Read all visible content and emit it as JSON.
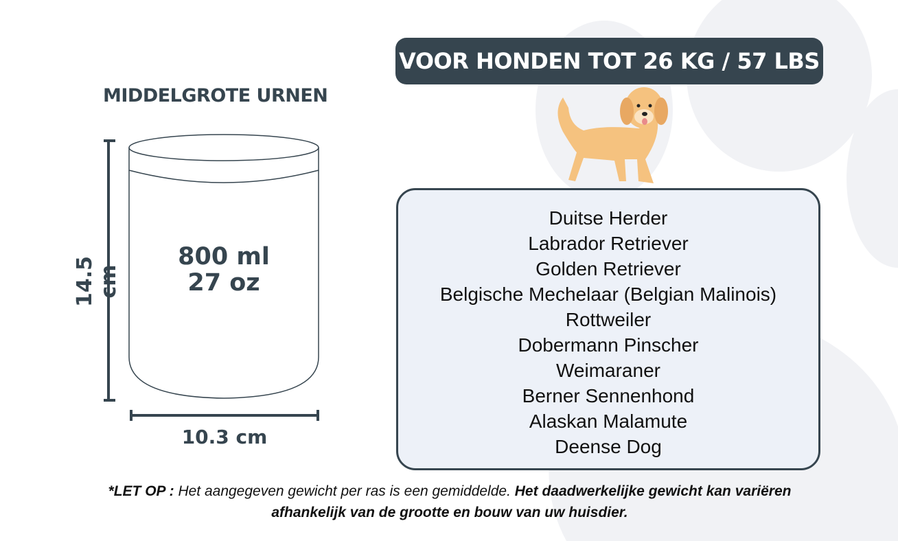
{
  "heading": "MIDDELGROTE URNEN",
  "banner": "VOOR HONDEN TOT 26 KG / 57 LBS",
  "urn": {
    "capacity_ml": "800 ml",
    "capacity_oz": "27 oz",
    "height": "14.5 cm",
    "width": "10.3 cm"
  },
  "breeds": [
    "Duitse Herder",
    "Labrador Retriever",
    "Golden Retriever",
    "Belgische Mechelaar (Belgian Malinois)",
    "Rottweiler",
    "Dobermann Pinscher",
    "Weimaraner",
    "Berner Sennenhond",
    "Alaskan Malamute",
    "Deense Dog"
  ],
  "note": {
    "bold_lead": "*LET OP :",
    "text1": " Het aangegeven gewicht per ras is een gemiddelde. ",
    "bold_text": "Het daadwerkelijke gewicht kan variëren afhankelijk van de grootte en bouw van uw huisdier."
  },
  "colors": {
    "primary": "#36454f",
    "box_fill": "#edf1f8",
    "dog": "#f5c27f",
    "paw": "#f1f2f5"
  },
  "icons": {
    "dog": "golden-retriever-illustration",
    "background": "paw-print"
  }
}
